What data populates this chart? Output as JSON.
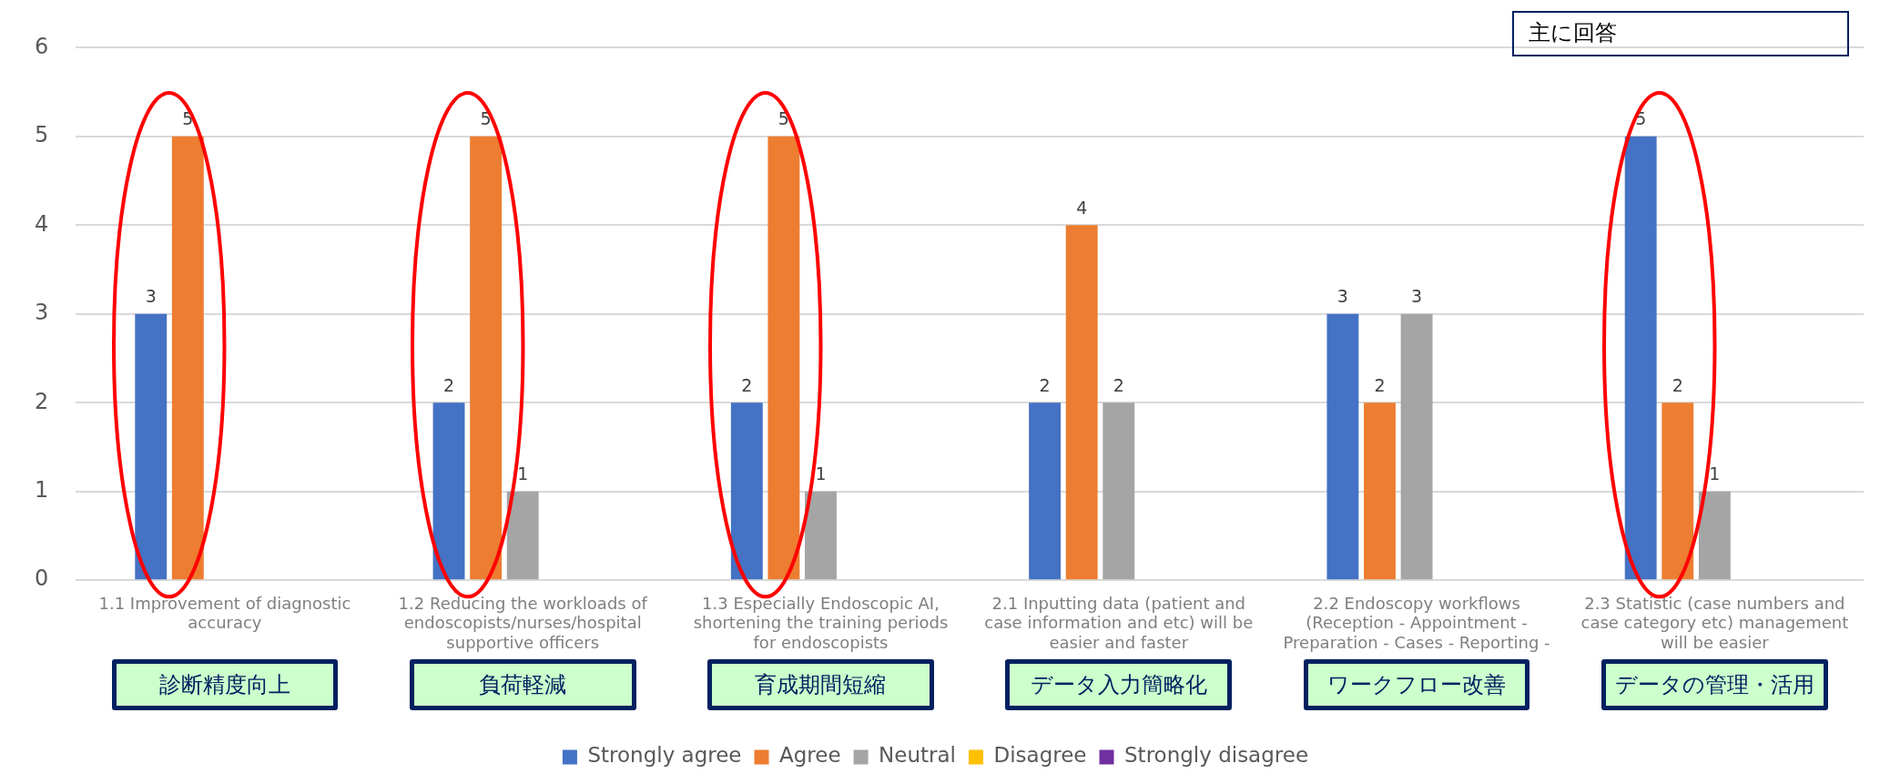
{
  "chart_data": {
    "type": "bar",
    "categories": [
      "1.1 Improvement of diagnostic accuracy",
      "1.2 Reducing the workloads of endoscopists/nurses/hospital supportive officers",
      "1.3 Especially Endoscopic AI, shortening the training periods for endoscopists",
      "2.1 Inputting data (patient and case information and etc) will be easier and faster",
      "2.2 Endoscopy workflows (Reception - Appointment - Preparation - Cases - Reporting -",
      "2.3 Statistic (case numbers and case category etc) management will be easier"
    ],
    "series": [
      {
        "name": "Strongly agree",
        "color": "#4472c4",
        "values": [
          3,
          2,
          2,
          2,
          3,
          5
        ]
      },
      {
        "name": "Agree",
        "color": "#ed7d31",
        "values": [
          5,
          5,
          5,
          4,
          2,
          2
        ]
      },
      {
        "name": "Neutral",
        "color": "#a5a5a5",
        "values": [
          null,
          1,
          1,
          2,
          3,
          1
        ]
      },
      {
        "name": "Disagree",
        "color": "#ffc000",
        "values": [
          null,
          null,
          null,
          null,
          null,
          null
        ]
      },
      {
        "name": "Strongly disagree",
        "color": "#7030a0",
        "values": [
          null,
          null,
          null,
          null,
          null,
          null
        ]
      }
    ],
    "ylim": [
      0,
      6
    ],
    "yticks": [
      0,
      1,
      2,
      3,
      4,
      5,
      6
    ],
    "grid": "y",
    "legend": "bottom",
    "data_labels": true,
    "annotations": [
      "診断精度向上",
      "負荷軽減",
      "育成期間短縮",
      "データ入力簡略化",
      "ワークフロー改善",
      "データの管理・活用",
      "主に回答"
    ]
  }
}
